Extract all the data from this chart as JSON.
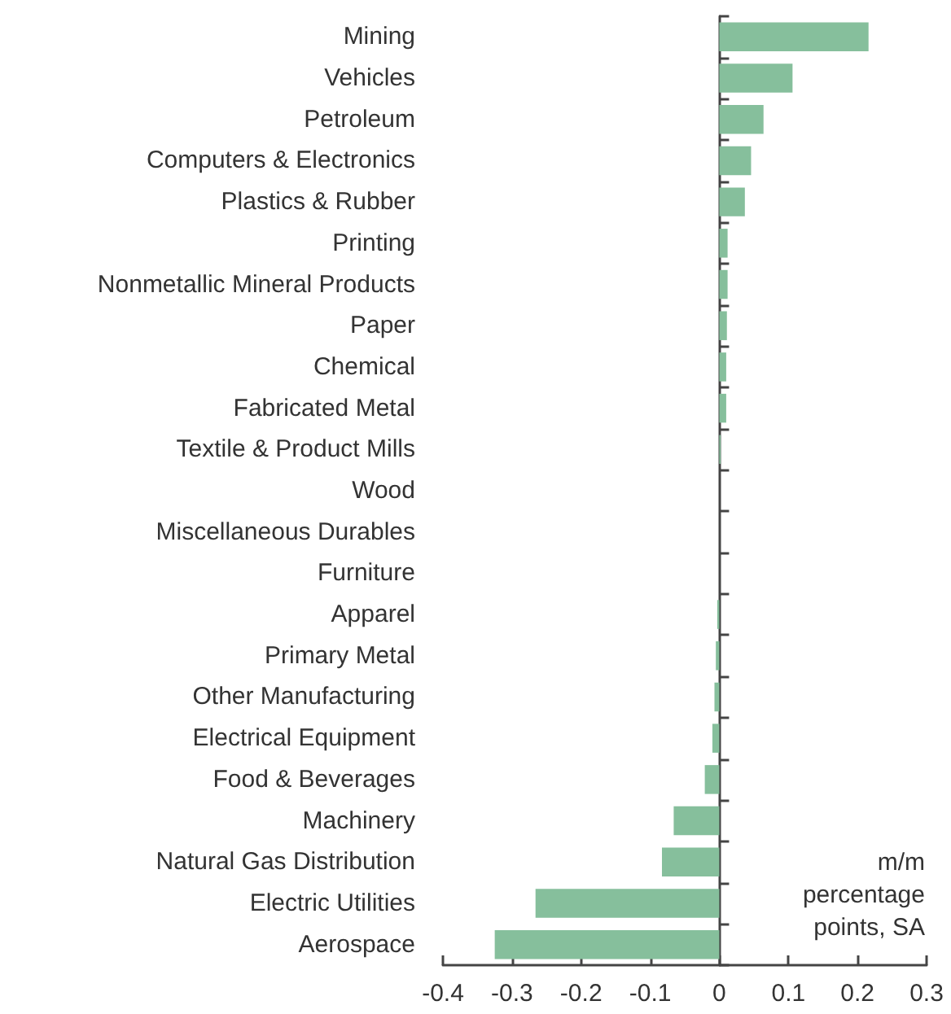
{
  "chart_data": {
    "type": "bar",
    "orientation": "horizontal",
    "categories": [
      "Mining",
      "Vehicles",
      "Petroleum",
      "Computers & Electronics",
      "Plastics & Rubber",
      "Printing",
      "Nonmetallic Mineral Products",
      "Paper",
      "Chemical",
      "Fabricated Metal",
      "Textile & Product Mills",
      "Wood",
      "Miscellaneous Durables",
      "Furniture",
      "Apparel",
      "Primary Metal",
      "Other Manufacturing",
      "Electrical Equipment",
      "Food & Beverages",
      "Machinery",
      "Natural Gas Distribution",
      "Electric Utilities",
      "Aerospace"
    ],
    "values": [
      0.216,
      0.106,
      0.064,
      0.046,
      0.037,
      0.012,
      0.012,
      0.011,
      0.01,
      0.01,
      0.002,
      0,
      0,
      0,
      -0.003,
      -0.005,
      -0.007,
      -0.01,
      -0.021,
      -0.066,
      -0.083,
      -0.266,
      -0.325
    ],
    "color": "#86bf9c",
    "xlim": [
      -0.4,
      0.3
    ],
    "xticks": [
      -0.4,
      -0.3,
      -0.2,
      -0.1,
      0,
      0.1,
      0.2,
      0.3
    ],
    "annotations": [
      "m/m\npercentage\npoints, SA"
    ]
  }
}
